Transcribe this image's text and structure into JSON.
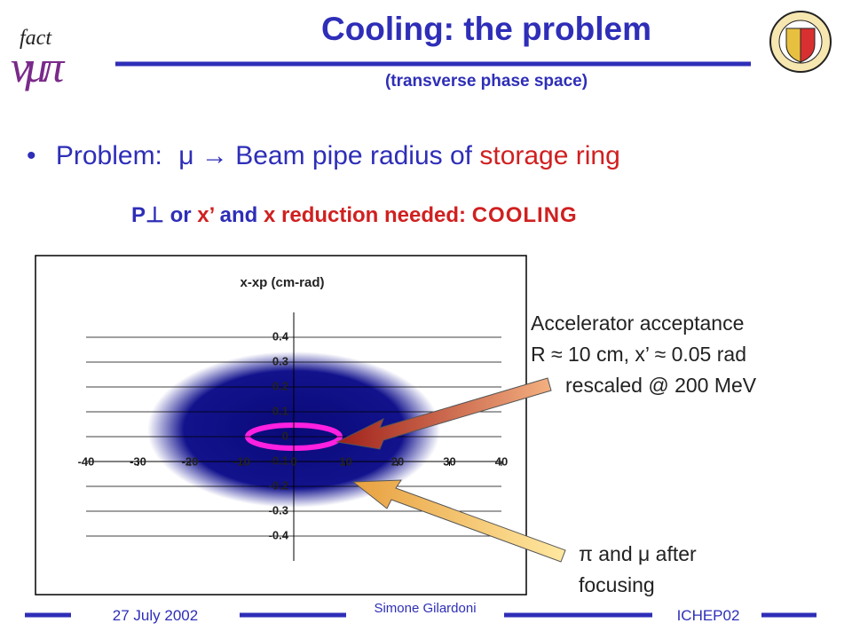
{
  "header": {
    "title": "Cooling: the problem",
    "subtitle": "(transverse phase space)"
  },
  "logo": {
    "text": "fact",
    "letters": "νμπ"
  },
  "bullet": {
    "parts": [
      "Problem:",
      "μ → Beam pipe radius of",
      "storage ring"
    ]
  },
  "subline": {
    "parts": [
      "P⊥ or",
      "x’",
      "and",
      "x reduction needed:",
      "COOLING"
    ]
  },
  "chart_data": {
    "type": "scatter",
    "title": "x-xp (cm-rad)",
    "xlim": [
      -40,
      40
    ],
    "xticks": [
      -40,
      -30,
      -20,
      -10,
      0,
      10,
      20,
      30,
      40
    ],
    "ylim": [
      -0.5,
      0.5
    ],
    "yticks": [
      0.4,
      0.3,
      0.2,
      0.1,
      0,
      -0.1,
      -0.2,
      -0.3,
      -0.4
    ],
    "grid": true
  },
  "annotations": {
    "acceptance": [
      "Accelerator acceptance",
      "R ≈ 10 cm, x’ ≈ 0.05 rad",
      "rescaled @ 200 MeV"
    ],
    "beam": [
      "π and μ after",
      "focusing"
    ]
  },
  "footer": {
    "date": "27 July 2002",
    "author": "Simone Gilardoni",
    "event": "ICHEP02"
  }
}
